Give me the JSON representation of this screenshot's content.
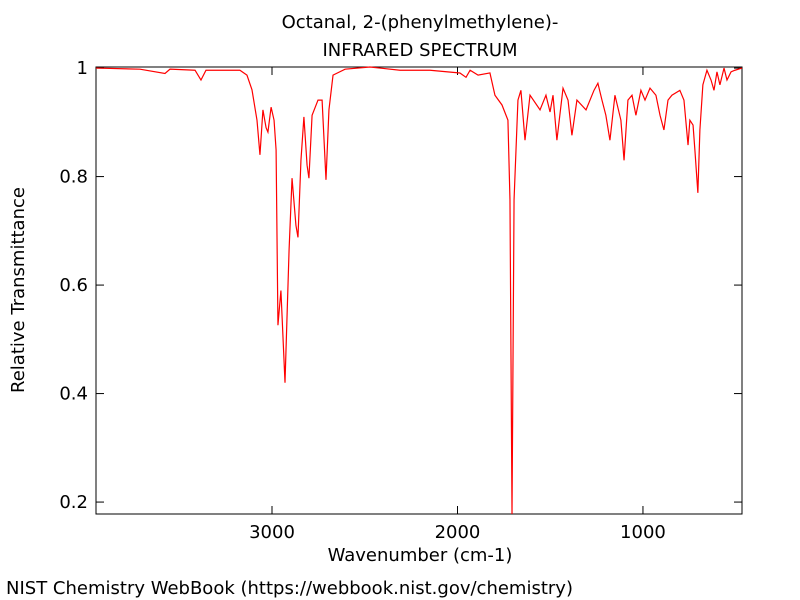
{
  "chart_data": {
    "type": "line",
    "title": "Octanal, 2-(phenylmethylene)-",
    "subtitle": "INFRARED SPECTRUM",
    "x_label": "Wavenumber (cm-1)",
    "y_label": "Relative Transmittance",
    "footer": "NIST Chemistry WebBook (https://webbook.nist.gov/chemistry)",
    "xlim": [
      3949,
      466
    ],
    "ylim": [
      0.178,
      1.002
    ],
    "xticks": [
      3000,
      2000,
      1000
    ],
    "yticks": [
      0.2,
      0.4,
      0.6,
      0.8,
      1
    ],
    "series": [
      {
        "name": "spectrum",
        "color": "#ff0000",
        "x": [
          3949,
          3712,
          3577,
          3550,
          3415,
          3383,
          3356,
          3173,
          3135,
          3108,
          3081,
          3065,
          3049,
          3032,
          3022,
          3005,
          2989,
          2978,
          2968,
          2952,
          2930,
          2908,
          2892,
          2871,
          2860,
          2844,
          2828,
          2811,
          2801,
          2784,
          2752,
          2730,
          2709,
          2693,
          2671,
          2606,
          2472,
          2310,
          2148,
          1987,
          1954,
          1932,
          1889,
          1825,
          1798,
          1760,
          1728,
          1717,
          1706,
          1695,
          1674,
          1658,
          1636,
          1609,
          1555,
          1523,
          1501,
          1485,
          1464,
          1431,
          1404,
          1383,
          1356,
          1307,
          1264,
          1243,
          1221,
          1200,
          1178,
          1151,
          1119,
          1102,
          1081,
          1059,
          1038,
          1011,
          989,
          962,
          930,
          908,
          887,
          865,
          844,
          801,
          779,
          757,
          747,
          730,
          720,
          704,
          693,
          677,
          655,
          633,
          617,
          601,
          585,
          563,
          547,
          525,
          504,
          466
        ],
        "values": [
          1.0,
          0.998,
          0.99,
          0.998,
          0.996,
          0.978,
          0.996,
          0.996,
          0.987,
          0.96,
          0.904,
          0.84,
          0.923,
          0.89,
          0.882,
          0.928,
          0.904,
          0.849,
          0.526,
          0.59,
          0.42,
          0.665,
          0.797,
          0.71,
          0.688,
          0.83,
          0.91,
          0.821,
          0.797,
          0.913,
          0.941,
          0.941,
          0.794,
          0.923,
          0.987,
          0.998,
          1.002,
          0.996,
          0.996,
          0.991,
          0.983,
          0.996,
          0.987,
          0.991,
          0.95,
          0.932,
          0.904,
          0.757,
          0.178,
          0.757,
          0.941,
          0.959,
          0.867,
          0.95,
          0.923,
          0.95,
          0.919,
          0.95,
          0.867,
          0.963,
          0.941,
          0.876,
          0.941,
          0.923,
          0.959,
          0.972,
          0.941,
          0.913,
          0.867,
          0.95,
          0.904,
          0.83,
          0.941,
          0.95,
          0.913,
          0.959,
          0.941,
          0.963,
          0.95,
          0.913,
          0.886,
          0.941,
          0.95,
          0.959,
          0.941,
          0.858,
          0.904,
          0.895,
          0.849,
          0.77,
          0.886,
          0.969,
          0.996,
          0.978,
          0.959,
          0.993,
          0.969,
          1.0,
          0.978,
          0.993,
          0.996,
          1.0
        ]
      }
    ]
  }
}
